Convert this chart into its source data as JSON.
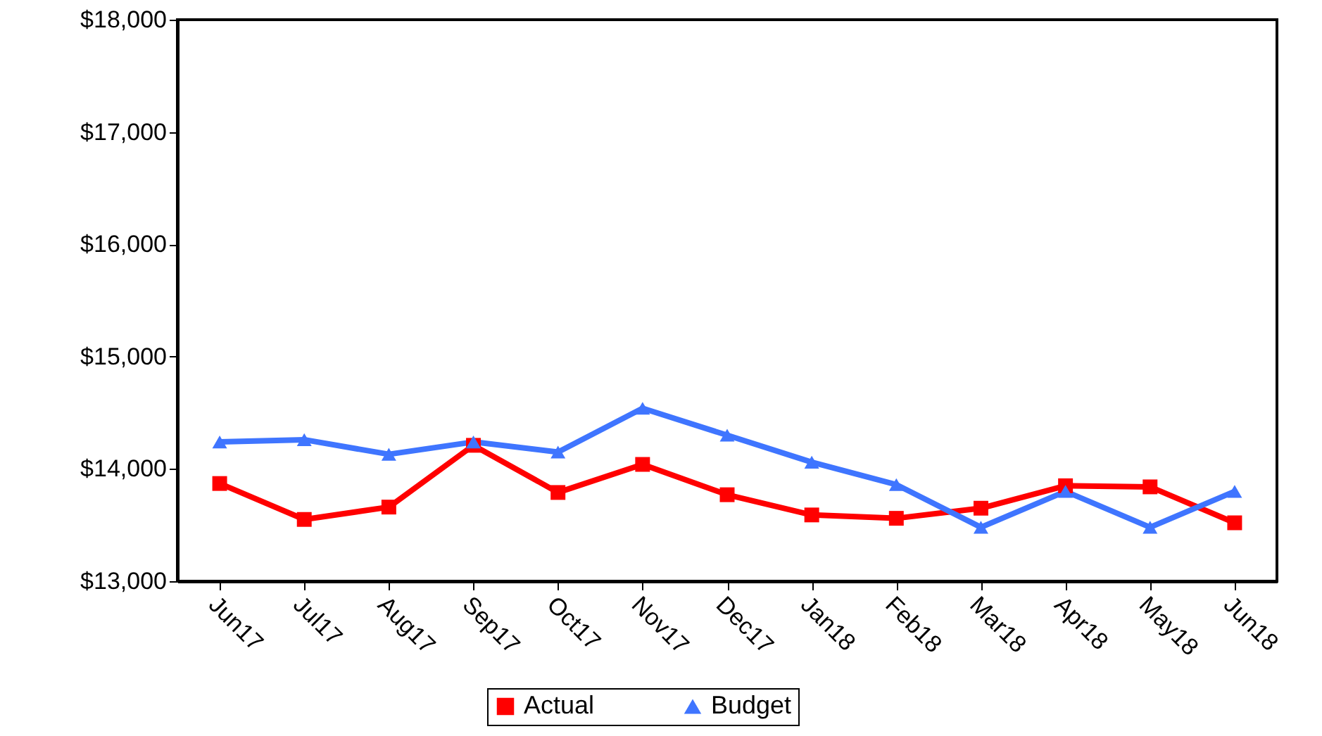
{
  "chart_data": {
    "type": "line",
    "categories": [
      "Jun17",
      "Jul17",
      "Aug17",
      "Sep17",
      "Oct17",
      "Nov17",
      "Dec17",
      "Jan18",
      "Feb18",
      "Mar18",
      "Apr18",
      "May18",
      "Jun18"
    ],
    "series": [
      {
        "name": "Actual",
        "color": "#ff0000",
        "marker": "square",
        "values": [
          13870,
          13550,
          13660,
          14210,
          13790,
          14040,
          13770,
          13590,
          13560,
          13650,
          13850,
          13840,
          13520
        ]
      },
      {
        "name": "Budget",
        "color": "#3f75ff",
        "marker": "triangle",
        "values": [
          14240,
          14260,
          14130,
          14240,
          14150,
          14540,
          14300,
          14060,
          13860,
          13480,
          13800,
          13480,
          13800
        ]
      }
    ],
    "ylim": [
      13000,
      18000
    ],
    "yticks": [
      {
        "value": 13000,
        "label": "$13,000"
      },
      {
        "value": 14000,
        "label": "$14,000"
      },
      {
        "value": 15000,
        "label": "$15,000"
      },
      {
        "value": 16000,
        "label": "$16,000"
      },
      {
        "value": 17000,
        "label": "$17,000"
      },
      {
        "value": 18000,
        "label": "$18,000"
      }
    ],
    "grid": false,
    "legend": "bottom",
    "line_style": "solid"
  }
}
